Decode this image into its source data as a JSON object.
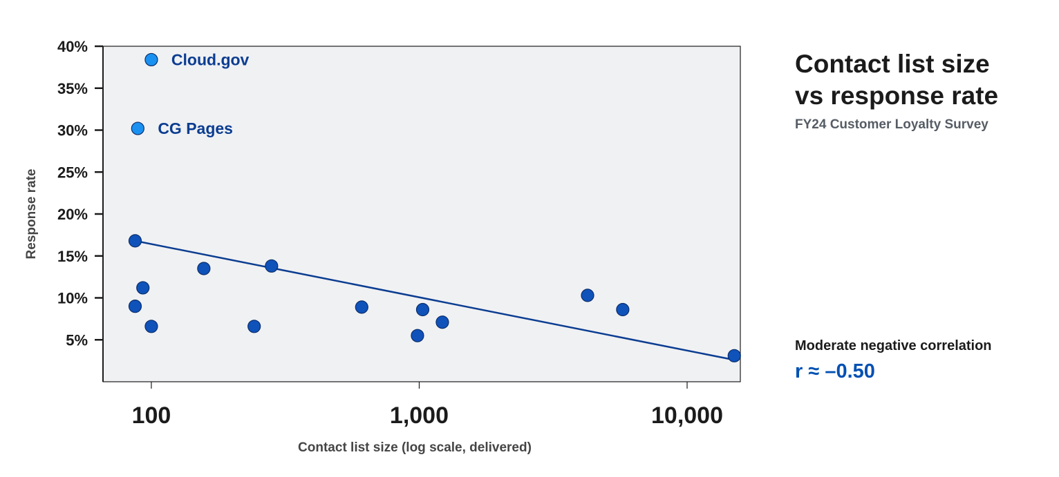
{
  "title_line1": "Contact list size",
  "title_line2": "vs response rate",
  "subtitle": "FY24 Customer Loyalty Survey",
  "annotation": {
    "label": "Moderate negative correlation",
    "value": "r ≈ –0.50"
  },
  "colors": {
    "point": "#0f52ba",
    "highlight": "#1a91f0",
    "trend": "#0b3d91",
    "plot_bg": "#f0f1f3"
  },
  "chart_data": {
    "type": "scatter",
    "xlabel": "Contact list size (log scale, delivered)",
    "ylabel": "Response rate",
    "x_scale": "log",
    "xlim": [
      66,
      15800
    ],
    "ylim": [
      0,
      40
    ],
    "grid": false,
    "x_ticks": [
      {
        "value": 100,
        "label": "100"
      },
      {
        "value": 1000,
        "label": "1,000"
      },
      {
        "value": 10000,
        "label": "10,000"
      }
    ],
    "y_ticks": [
      {
        "value": 5,
        "label": "5%"
      },
      {
        "value": 10,
        "label": "10%"
      },
      {
        "value": 15,
        "label": "15%"
      },
      {
        "value": 20,
        "label": "20%"
      },
      {
        "value": 25,
        "label": "25%"
      },
      {
        "value": 30,
        "label": "30%"
      },
      {
        "value": 35,
        "label": "35%"
      },
      {
        "value": 40,
        "label": "40%"
      }
    ],
    "points": [
      {
        "x": 100,
        "y": 38.4,
        "label": "Cloud.gov",
        "highlight": true
      },
      {
        "x": 89,
        "y": 30.2,
        "label": "CG Pages",
        "highlight": true
      },
      {
        "x": 87,
        "y": 16.8
      },
      {
        "x": 93,
        "y": 11.2
      },
      {
        "x": 87,
        "y": 9.0
      },
      {
        "x": 100,
        "y": 6.6
      },
      {
        "x": 157,
        "y": 13.5
      },
      {
        "x": 242,
        "y": 6.6
      },
      {
        "x": 281,
        "y": 13.8
      },
      {
        "x": 610,
        "y": 8.9
      },
      {
        "x": 985,
        "y": 5.5
      },
      {
        "x": 1030,
        "y": 8.6
      },
      {
        "x": 1220,
        "y": 7.1
      },
      {
        "x": 4250,
        "y": 10.3
      },
      {
        "x": 5750,
        "y": 8.6
      },
      {
        "x": 15000,
        "y": 3.1
      }
    ],
    "trendline": {
      "x": [
        87,
        15000
      ],
      "y": [
        16.8,
        2.6
      ]
    }
  }
}
